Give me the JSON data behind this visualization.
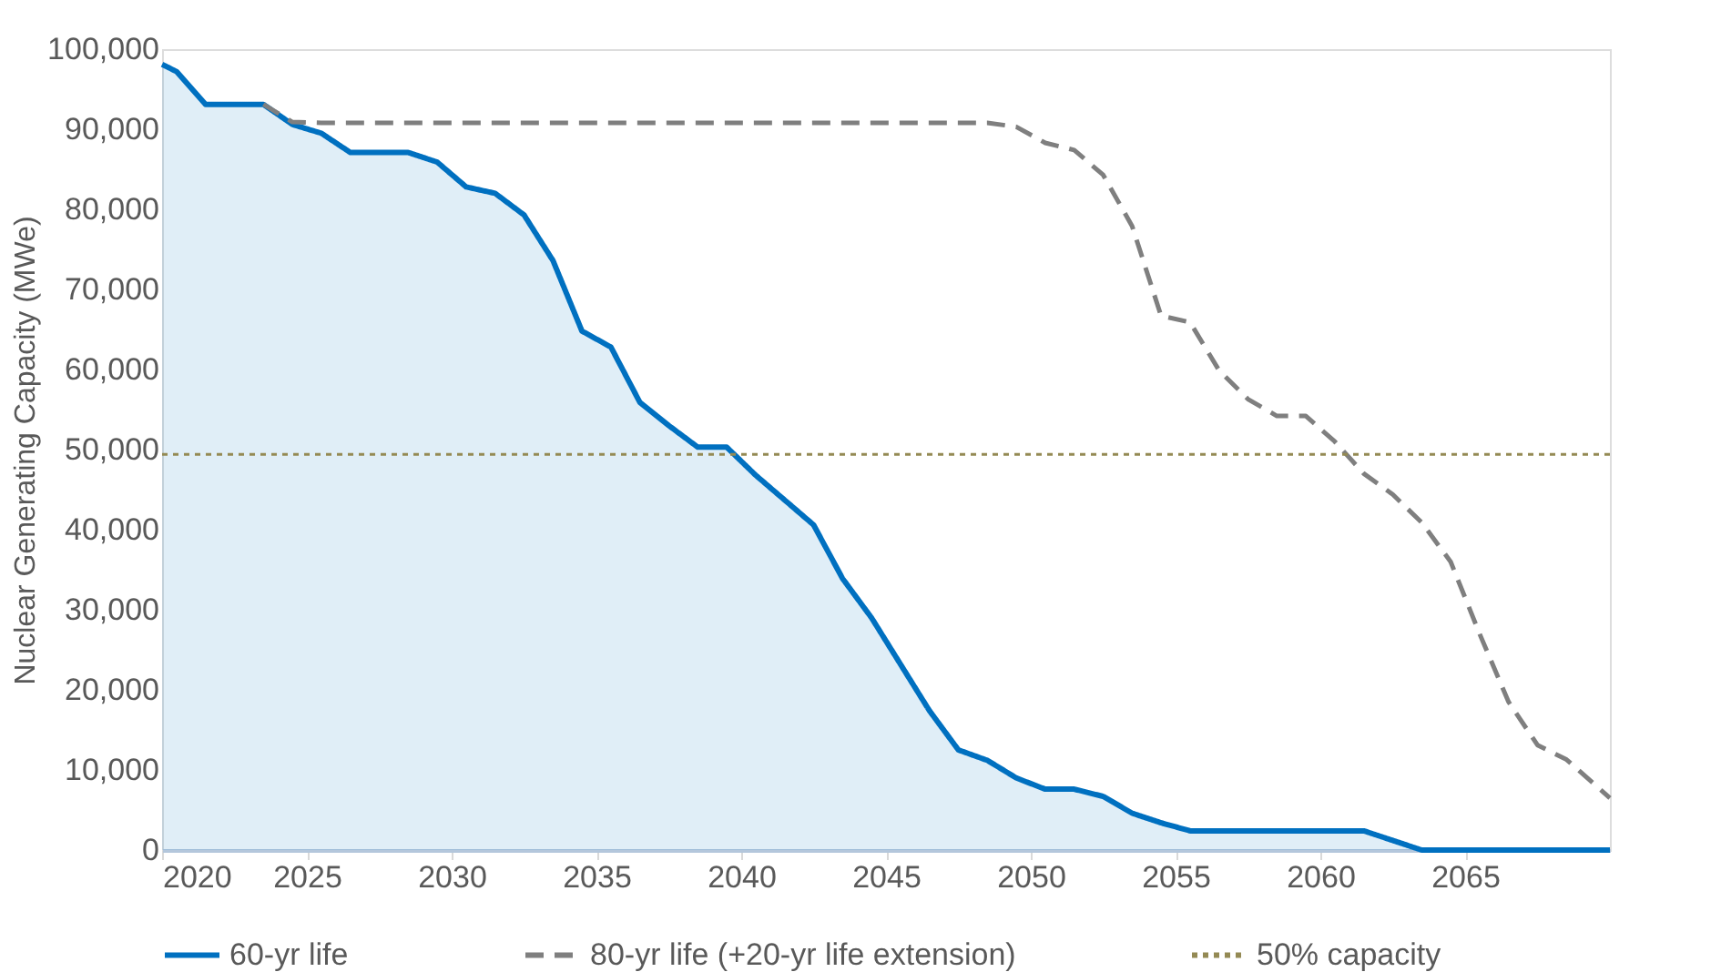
{
  "chart_data": {
    "type": "area",
    "ylabel": "Nuclear Generating Capacity (MWe)",
    "xlim": [
      2020,
      2070
    ],
    "xticks": [
      2020,
      2025,
      2030,
      2035,
      2040,
      2045,
      2050,
      2055,
      2060,
      2065
    ],
    "ylim": [
      0,
      100000
    ],
    "yticks": [
      0,
      {
        "value": 10000,
        "label": "10,000"
      },
      {
        "value": 20000,
        "label": "20,000"
      },
      {
        "value": 30000,
        "label": "30,000"
      },
      {
        "value": 40000,
        "label": "40,000"
      },
      {
        "value": 50000,
        "label": "50,000"
      },
      {
        "value": 60000,
        "label": "60,000"
      },
      {
        "value": 70000,
        "label": "70,000"
      },
      {
        "value": 80000,
        "label": "80,000"
      },
      {
        "value": 90000,
        "label": "90,000"
      },
      {
        "value": 100000,
        "label": "100,000"
      }
    ],
    "grid": false,
    "legend": "bottom",
    "series": [
      {
        "name": "60-yr life",
        "color": "#0070c0",
        "line_style": "solid",
        "x": [
          2020,
          2020.5,
          2021.5,
          2022.5,
          2023.5,
          2024.5,
          2025.5,
          2026.5,
          2027.5,
          2028.5,
          2029.5,
          2030.5,
          2031.5,
          2032.5,
          2033.5,
          2034.5,
          2035.5,
          2036.5,
          2037.5,
          2038.5,
          2039.5,
          2040.5,
          2041.5,
          2042.5,
          2043.5,
          2044.5,
          2045.5,
          2046.5,
          2047.5,
          2048.5,
          2049.5,
          2050.5,
          2051.5,
          2052.5,
          2053.5,
          2054.5,
          2055.5,
          2056.5,
          2057.5,
          2058.5,
          2059.5,
          2060.5,
          2061.5,
          2062.5,
          2063.5,
          2064.5,
          2065.5,
          2066.5,
          2067.5,
          2068.5,
          2069.5,
          2070
        ],
        "values": [
          98100,
          97200,
          93100,
          93100,
          93100,
          90600,
          89500,
          87100,
          87100,
          87100,
          85900,
          82800,
          82000,
          79300,
          73600,
          64800,
          62800,
          55900,
          53000,
          50300,
          50300,
          46800,
          43700,
          40600,
          33900,
          29000,
          23200,
          17400,
          12500,
          11200,
          9000,
          7600,
          7600,
          6700,
          4600,
          3400,
          2400,
          2400,
          2400,
          2400,
          2400,
          2400,
          2400,
          1200,
          0,
          0,
          0,
          0,
          0,
          0,
          0,
          0
        ]
      },
      {
        "name": "80-yr life (+20-yr life extension)",
        "type": "line",
        "color": "#7f7f7f",
        "line_style": "dashed",
        "x": [
          2023.5,
          2024.5,
          2025.5,
          2030.5,
          2035.5,
          2040.5,
          2045.5,
          2048.5,
          2049.5,
          2050.5,
          2051.5,
          2052.5,
          2053.5,
          2054.5,
          2055.5,
          2056.5,
          2057.5,
          2058.5,
          2059.5,
          2060.5,
          2061.5,
          2062.5,
          2063.5,
          2064.5,
          2065.5,
          2066.5,
          2067.5,
          2068.5,
          2070
        ],
        "values": [
          93100,
          90900,
          90800,
          90800,
          90800,
          90800,
          90800,
          90800,
          90300,
          88300,
          87400,
          84300,
          77900,
          66700,
          65900,
          59900,
          56300,
          54200,
          54200,
          51000,
          47000,
          44400,
          40900,
          36000,
          27000,
          18500,
          13100,
          11300,
          6500
        ]
      }
    ],
    "ref_lines": [
      {
        "axis": "y",
        "value": 49400,
        "label": "50% capacity",
        "color": "#948a54",
        "line_style": "dotted"
      }
    ]
  }
}
